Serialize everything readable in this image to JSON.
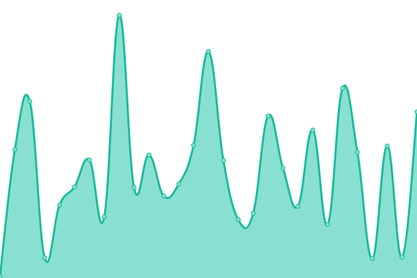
{
  "chart_data": {
    "type": "area",
    "title": "",
    "xlabel": "",
    "ylabel": "",
    "x": [
      0,
      1,
      2,
      3,
      4,
      5,
      6,
      7,
      8,
      9,
      10,
      11,
      12,
      13,
      14,
      15,
      16,
      17,
      18,
      19,
      20,
      21,
      22,
      23,
      24,
      25,
      26,
      27,
      28
    ],
    "values": [
      2,
      185,
      254,
      29,
      105,
      131,
      170,
      88,
      378,
      130,
      177,
      118,
      135,
      191,
      326,
      169,
      84,
      93,
      233,
      158,
      103,
      213,
      77,
      273,
      181,
      28,
      190,
      30,
      239
    ],
    "ylim": [
      0,
      400
    ],
    "grid": false,
    "axes_visible": false,
    "curve": "smooth",
    "line_color": "#1abc9c",
    "fill_color": "#8ae0d0",
    "point_color": "#7fe0c8"
  }
}
